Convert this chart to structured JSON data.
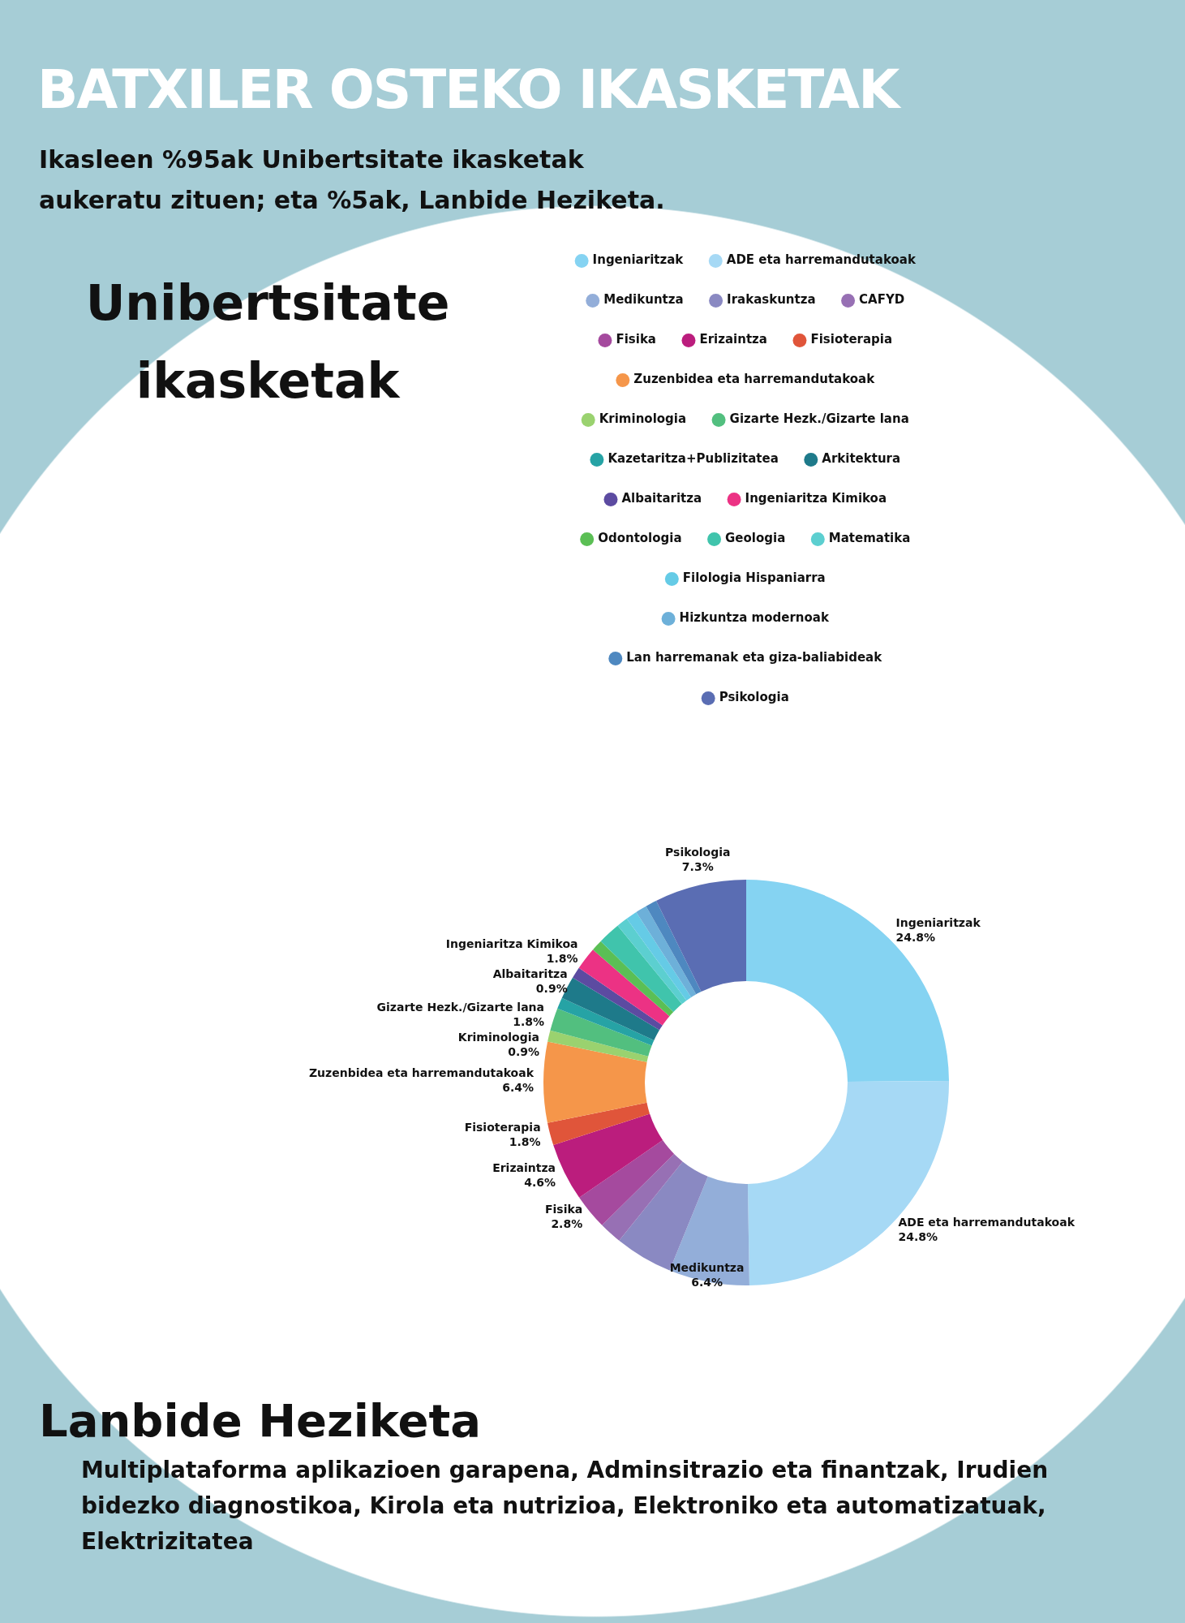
{
  "chart_data": {
    "type": "donut",
    "title": "BATXILER OSTEKO IKASKETAK",
    "subtitle": "Ikasleen %95ak Unibertsitate ikasketak aukeratu zituen; eta %5ak, Lanbide Heziketa.",
    "categories": [
      "Ingeniaritzak",
      "ADE eta harremandutakoak",
      "Medikuntza",
      "Irakaskuntza",
      "CAFYD",
      "Fisika",
      "Erizaintza",
      "Fisioterapia",
      "Zuzenbidea eta harremandutakoak",
      "Kriminologia",
      "Gizarte Hezk./Gizarte lana",
      "Kazetaritza+Publizitatea",
      "Arkitektura",
      "Albaitaritza",
      "Ingeniaritza Kimikoa",
      "Odontologia",
      "Geologia",
      "Matematika",
      "Filologia Hispaniarra",
      "Hizkuntza modernoak",
      "Lan harremanak eta giza-baliabideak",
      "Psikologia"
    ],
    "values": [
      24.8,
      24.8,
      6.4,
      4.6,
      1.8,
      2.8,
      4.6,
      1.8,
      6.4,
      0.9,
      1.8,
      0.9,
      1.8,
      0.9,
      1.8,
      0.9,
      1.8,
      0.9,
      0.9,
      0.9,
      0.9,
      7.3
    ],
    "value_labels": [
      "24.8%",
      "24.8%",
      "6.4%",
      null,
      null,
      "2.8%",
      "4.6%",
      "1.8%",
      "6.4%",
      "0.9%",
      "1.8%",
      null,
      null,
      "0.9%",
      "1.8%",
      null,
      null,
      null,
      null,
      null,
      null,
      "7.3%"
    ],
    "colors": [
      "#85d3f2",
      "#a6d9f5",
      "#93aed9",
      "#8a89c2",
      "#9770b4",
      "#a54a9e",
      "#bb1d7d",
      "#e0553a",
      "#f5964a",
      "#9ad26f",
      "#52bf7f",
      "#26a3a5",
      "#1e7a8a",
      "#5c4ba1",
      "#ec3284",
      "#5bbf55",
      "#40c4ac",
      "#5ccfd0",
      "#65cbe6",
      "#6db0d9",
      "#4e88c0",
      "#5a6db3"
    ],
    "legend": "top",
    "annotations": [
      "Unibertsitate ikasketak",
      "Lanbide Heziketa",
      "Multiplataforma aplikazioen garapena, Adminsitrazio eta finantzak, Irudien bidezko diagnostikoa, Kirola eta nutrizioa, Elektroniko eta automatizatuak, Elektrizitatea"
    ]
  }
}
